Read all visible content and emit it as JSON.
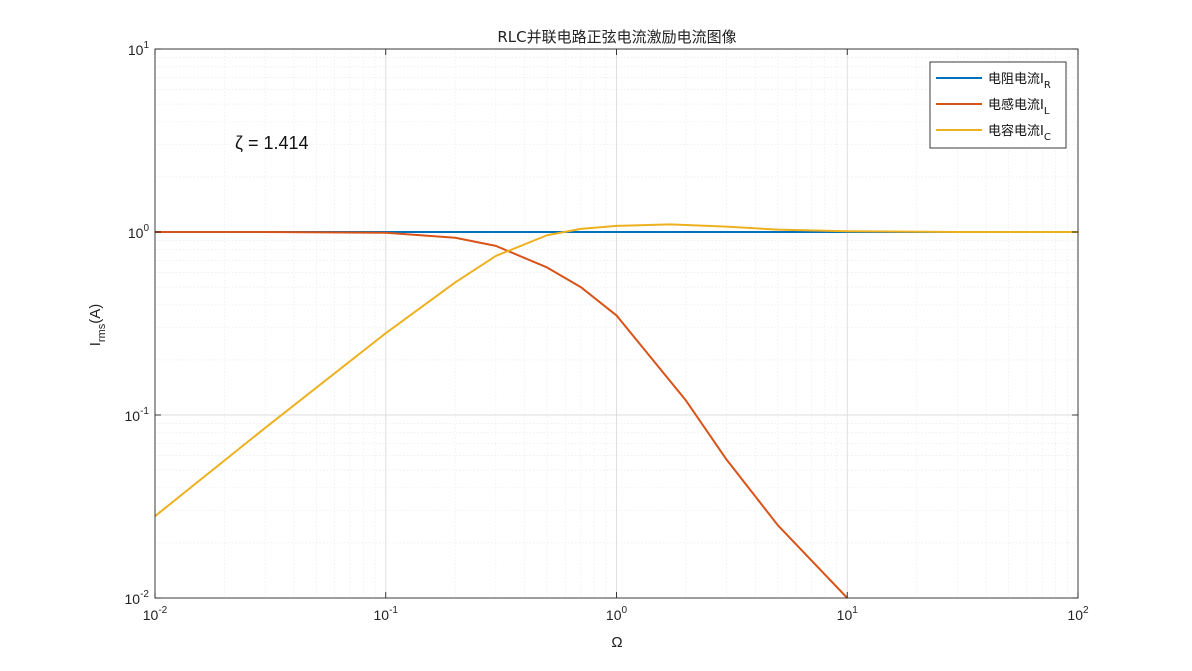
{
  "chart_data": {
    "type": "line",
    "title": "RLC并联电路正弦电流激励电流图像",
    "xlabel": "Ω",
    "ylabel_main": "I",
    "ylabel_sub": "rms",
    "ylabel_suffix": "(A)",
    "xscale": "log",
    "yscale": "log",
    "xlim": [
      0.01,
      100
    ],
    "ylim": [
      0.01,
      10
    ],
    "grid": true,
    "minor_grid": true,
    "legend_position": "top-right",
    "xticks": [
      {
        "base": "10",
        "exp": "-2"
      },
      {
        "base": "10",
        "exp": "-1"
      },
      {
        "base": "10",
        "exp": "0"
      },
      {
        "base": "10",
        "exp": "1"
      },
      {
        "base": "10",
        "exp": "2"
      }
    ],
    "yticks": [
      {
        "base": "10",
        "exp": "-2"
      },
      {
        "base": "10",
        "exp": "-1"
      },
      {
        "base": "10",
        "exp": "0"
      },
      {
        "base": "10",
        "exp": "1"
      }
    ],
    "annotation": "ζ = 1.414",
    "zeta": 1.414,
    "series": [
      {
        "name": "电阻电流",
        "sub": "R",
        "color": "#0072BD",
        "x": [
          0.01,
          0.1,
          0.3,
          1,
          3,
          10,
          100
        ],
        "y": [
          1.0,
          1.0,
          1.0,
          1.0,
          1.0,
          1.0,
          1.0
        ]
      },
      {
        "name": "电感电流",
        "sub": "L",
        "color": "#D95319",
        "x": [
          0.01,
          0.03,
          0.1,
          0.2,
          0.3,
          0.5,
          0.7,
          1,
          2,
          3,
          5,
          10
        ],
        "y": [
          1.0,
          1.0,
          0.99,
          0.93,
          0.84,
          0.64,
          0.5,
          0.35,
          0.12,
          0.057,
          0.025,
          0.01
        ]
      },
      {
        "name": "电容电流",
        "sub": "C",
        "color": "#EDB120",
        "x": [
          0.01,
          0.03,
          0.1,
          0.2,
          0.3,
          0.5,
          0.7,
          1,
          1.7,
          3,
          5,
          10,
          30,
          100
        ],
        "y": [
          0.028,
          0.085,
          0.28,
          0.53,
          0.74,
          0.96,
          1.04,
          1.08,
          1.1,
          1.07,
          1.03,
          1.01,
          1.0,
          1.0
        ]
      }
    ]
  }
}
